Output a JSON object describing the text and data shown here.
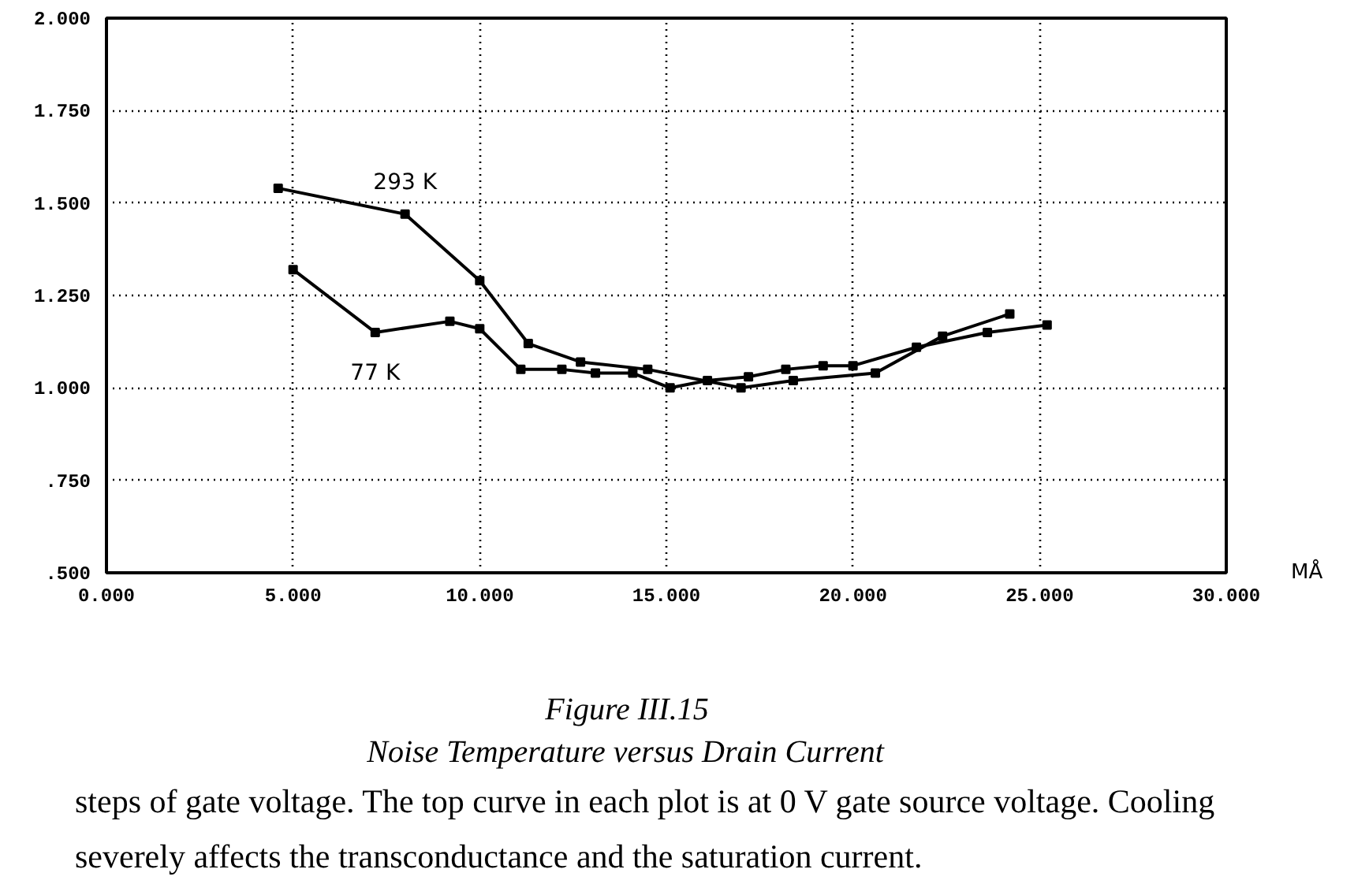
{
  "chart_data": {
    "type": "line",
    "title": "Figure III.15",
    "subtitle": "Noise Temperature versus Drain Current",
    "xlabel": "MÅ",
    "annotations": [
      "steps of gate voltage. The top curve in each plot is at 0 V gate source voltage. Cooling",
      "severely affects the transconductance and the saturation current."
    ],
    "xlim": [
      0,
      30
    ],
    "xticks": [
      {
        "value": 0,
        "label": "0.000"
      },
      {
        "value": 5,
        "label": "5.000"
      },
      {
        "value": 10,
        "label": "10.000"
      },
      {
        "value": 15,
        "label": "15.000"
      },
      {
        "value": 20,
        "label": "20.000"
      },
      {
        "value": 25,
        "label": "25.000"
      },
      {
        "value": 30,
        "label": "30.000"
      }
    ],
    "ylim": [
      0.5,
      2.0
    ],
    "yticks": [
      {
        "value": 0.5,
        "label": ".500"
      },
      {
        "value": 0.75,
        "label": ".750"
      },
      {
        "value": 1.0,
        "label": "1.000"
      },
      {
        "value": 1.25,
        "label": "1.250"
      },
      {
        "value": 1.5,
        "label": "1.500"
      },
      {
        "value": 1.75,
        "label": "1.750"
      },
      {
        "value": 2.0,
        "label": "2.000"
      }
    ],
    "grid": true,
    "marker": "square",
    "line_style": "solid",
    "series": [
      {
        "name": "293 K",
        "color": "#000000",
        "x": [
          4.6,
          8.0,
          10.0,
          11.3,
          12.7,
          14.5,
          17.0,
          18.4,
          20.6,
          22.4,
          24.2
        ],
        "values": [
          1.54,
          1.47,
          1.29,
          1.12,
          1.07,
          1.05,
          1.0,
          1.02,
          1.04,
          1.14,
          1.2
        ]
      },
      {
        "name": "77 K",
        "color": "#000000",
        "x": [
          5.0,
          7.2,
          9.2,
          10.0,
          11.1,
          12.2,
          13.1,
          14.1,
          15.1,
          16.1,
          17.2,
          18.2,
          19.2,
          20.0,
          21.7,
          23.6,
          25.2
        ],
        "values": [
          1.32,
          1.15,
          1.18,
          1.16,
          1.05,
          1.05,
          1.04,
          1.04,
          1.0,
          1.02,
          1.03,
          1.05,
          1.06,
          1.06,
          1.11,
          1.15,
          1.17
        ]
      }
    ]
  }
}
